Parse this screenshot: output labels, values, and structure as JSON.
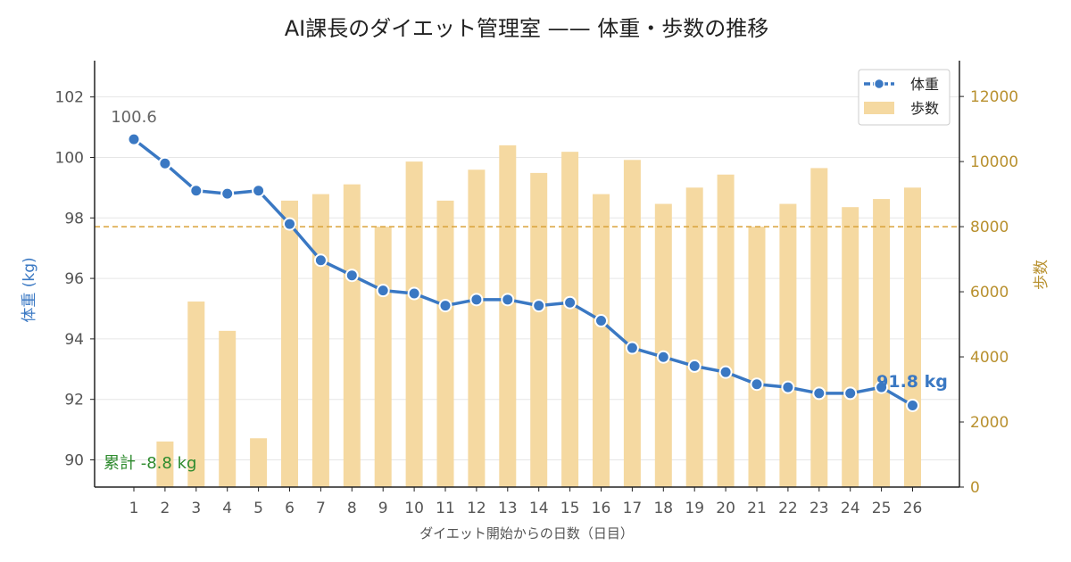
{
  "chart_data": {
    "type": "bar+line",
    "title": "AI課長のダイエット管理室 —— 体重・歩数の推移",
    "xlabel": "ダイエット開始からの日数（日目）",
    "ylabel_left": "体重 (kg)",
    "ylabel_right": "歩数",
    "x": [
      1,
      2,
      3,
      4,
      5,
      6,
      7,
      8,
      9,
      10,
      11,
      12,
      13,
      14,
      15,
      16,
      17,
      18,
      19,
      20,
      21,
      22,
      23,
      24,
      25,
      26
    ],
    "ylim_left": [
      89.1,
      103.2
    ],
    "ylim_right": [
      0,
      13100
    ],
    "yticks_left": [
      90,
      92,
      94,
      96,
      98,
      100,
      102
    ],
    "yticks_right": [
      0,
      2000,
      4000,
      6000,
      8000,
      10000,
      12000
    ],
    "series": [
      {
        "name": "体重",
        "kind": "line",
        "axis": "left",
        "color": "#3a78c3",
        "values": [
          100.6,
          99.8,
          98.9,
          98.8,
          98.9,
          97.8,
          96.6,
          96.1,
          95.6,
          95.5,
          95.1,
          95.3,
          95.3,
          95.1,
          95.2,
          94.6,
          93.7,
          93.4,
          93.1,
          92.9,
          92.5,
          92.4,
          92.2,
          92.2,
          92.4,
          91.8
        ]
      },
      {
        "name": "歩数",
        "kind": "bar",
        "axis": "right",
        "color": "#f5d9a1",
        "values": [
          null,
          1400,
          5700,
          4800,
          1500,
          8800,
          9000,
          9300,
          8000,
          10000,
          8800,
          9750,
          10500,
          9650,
          10300,
          9000,
          10050,
          8700,
          9200,
          9600,
          8000,
          8700,
          9800,
          8600,
          8850,
          9200
        ]
      }
    ],
    "reference_line": {
      "axis": "right",
      "value": 8000,
      "color": "#d9a23a",
      "style": "dashed"
    },
    "annotations": {
      "start_label": "100.6",
      "end_label": "91.8 kg",
      "cumulative_label": "累計 -8.8 kg"
    },
    "legend": {
      "placement": "top-right",
      "items": [
        "体重",
        "歩数"
      ]
    },
    "grid": "horizontal",
    "colors": {
      "weight": "#3a78c3",
      "steps": "#f5d9a1",
      "target_line": "#d9a23a",
      "left_axis_label": "#3a78c3",
      "right_axis": "#b8902e",
      "cumulative": "#2e8b2e",
      "start_label": "#666666"
    }
  }
}
